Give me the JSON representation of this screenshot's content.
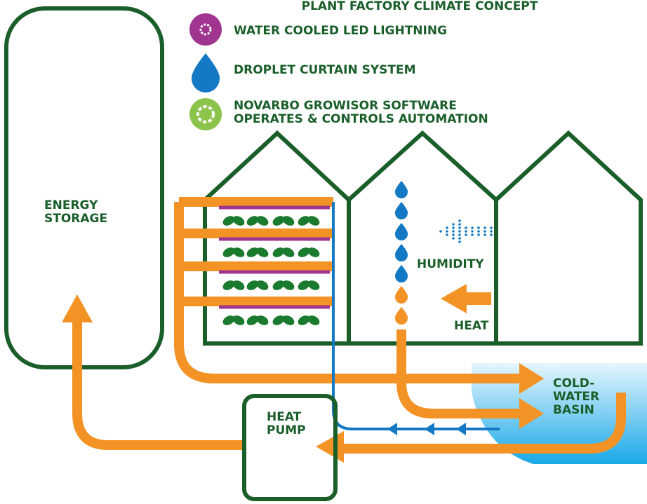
{
  "title": "PLANT FACTORY CLIMATE CONCEPT",
  "legend": [
    {
      "lines": [
        "WATER COOLED LED LIGHTNING"
      ]
    },
    {
      "lines": [
        "DROPLET CURTAIN SYSTEM"
      ]
    },
    {
      "lines": [
        "NOVARBO GROWISOR SOFTWARE",
        "OPERATES & CONTROLS AUTOMATION"
      ]
    }
  ],
  "labels": {
    "energy_storage": [
      "ENERGY",
      "STORAGE"
    ],
    "humidity": [
      "HUMIDITY"
    ],
    "heat": [
      "HEAT"
    ],
    "basin": [
      "COLD-",
      "WATER",
      "BASIN"
    ],
    "heat_pump": [
      "HEAT",
      "PUMP"
    ]
  }
}
